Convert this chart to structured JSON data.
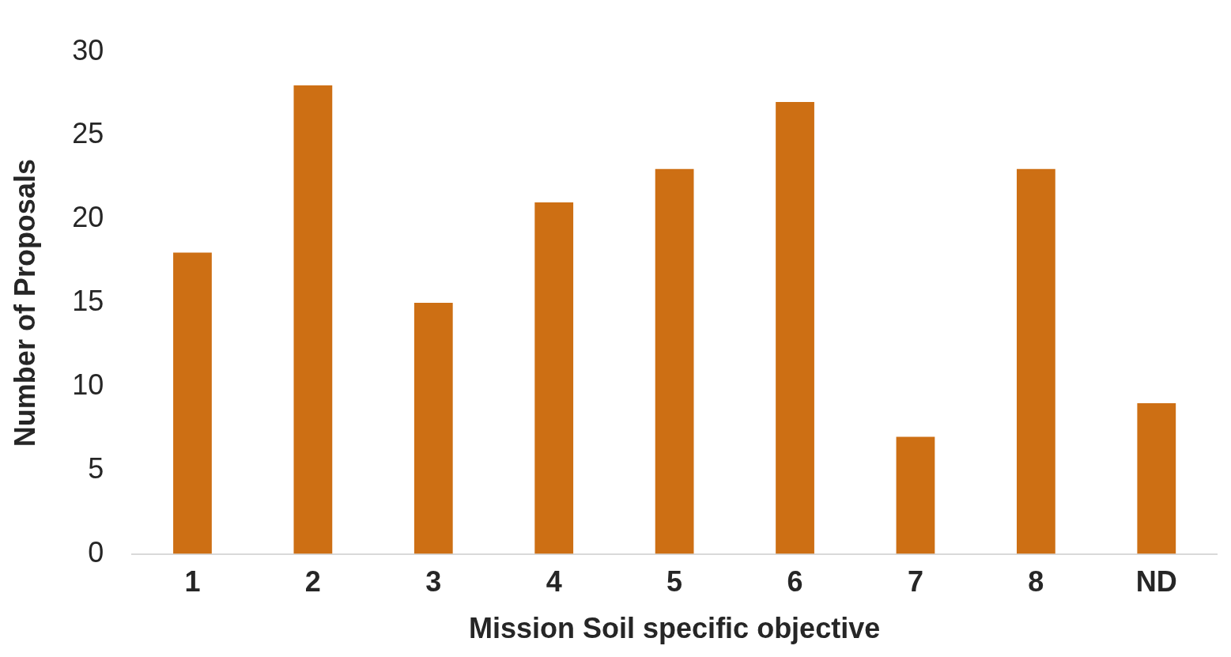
{
  "chart_data": {
    "type": "bar",
    "xlabel": "Mission Soil specific objective",
    "ylabel": "Number of Proposals",
    "categories": [
      "1",
      "2",
      "3",
      "4",
      "5",
      "6",
      "7",
      "8",
      "ND"
    ],
    "values": [
      18,
      28,
      15,
      21,
      23,
      27,
      7,
      23,
      9
    ],
    "color": "#cd6f14",
    "ylim": [
      0,
      30
    ],
    "yticks": [
      0,
      5,
      10,
      15,
      20,
      25,
      30
    ],
    "grid": false,
    "legend": false
  }
}
